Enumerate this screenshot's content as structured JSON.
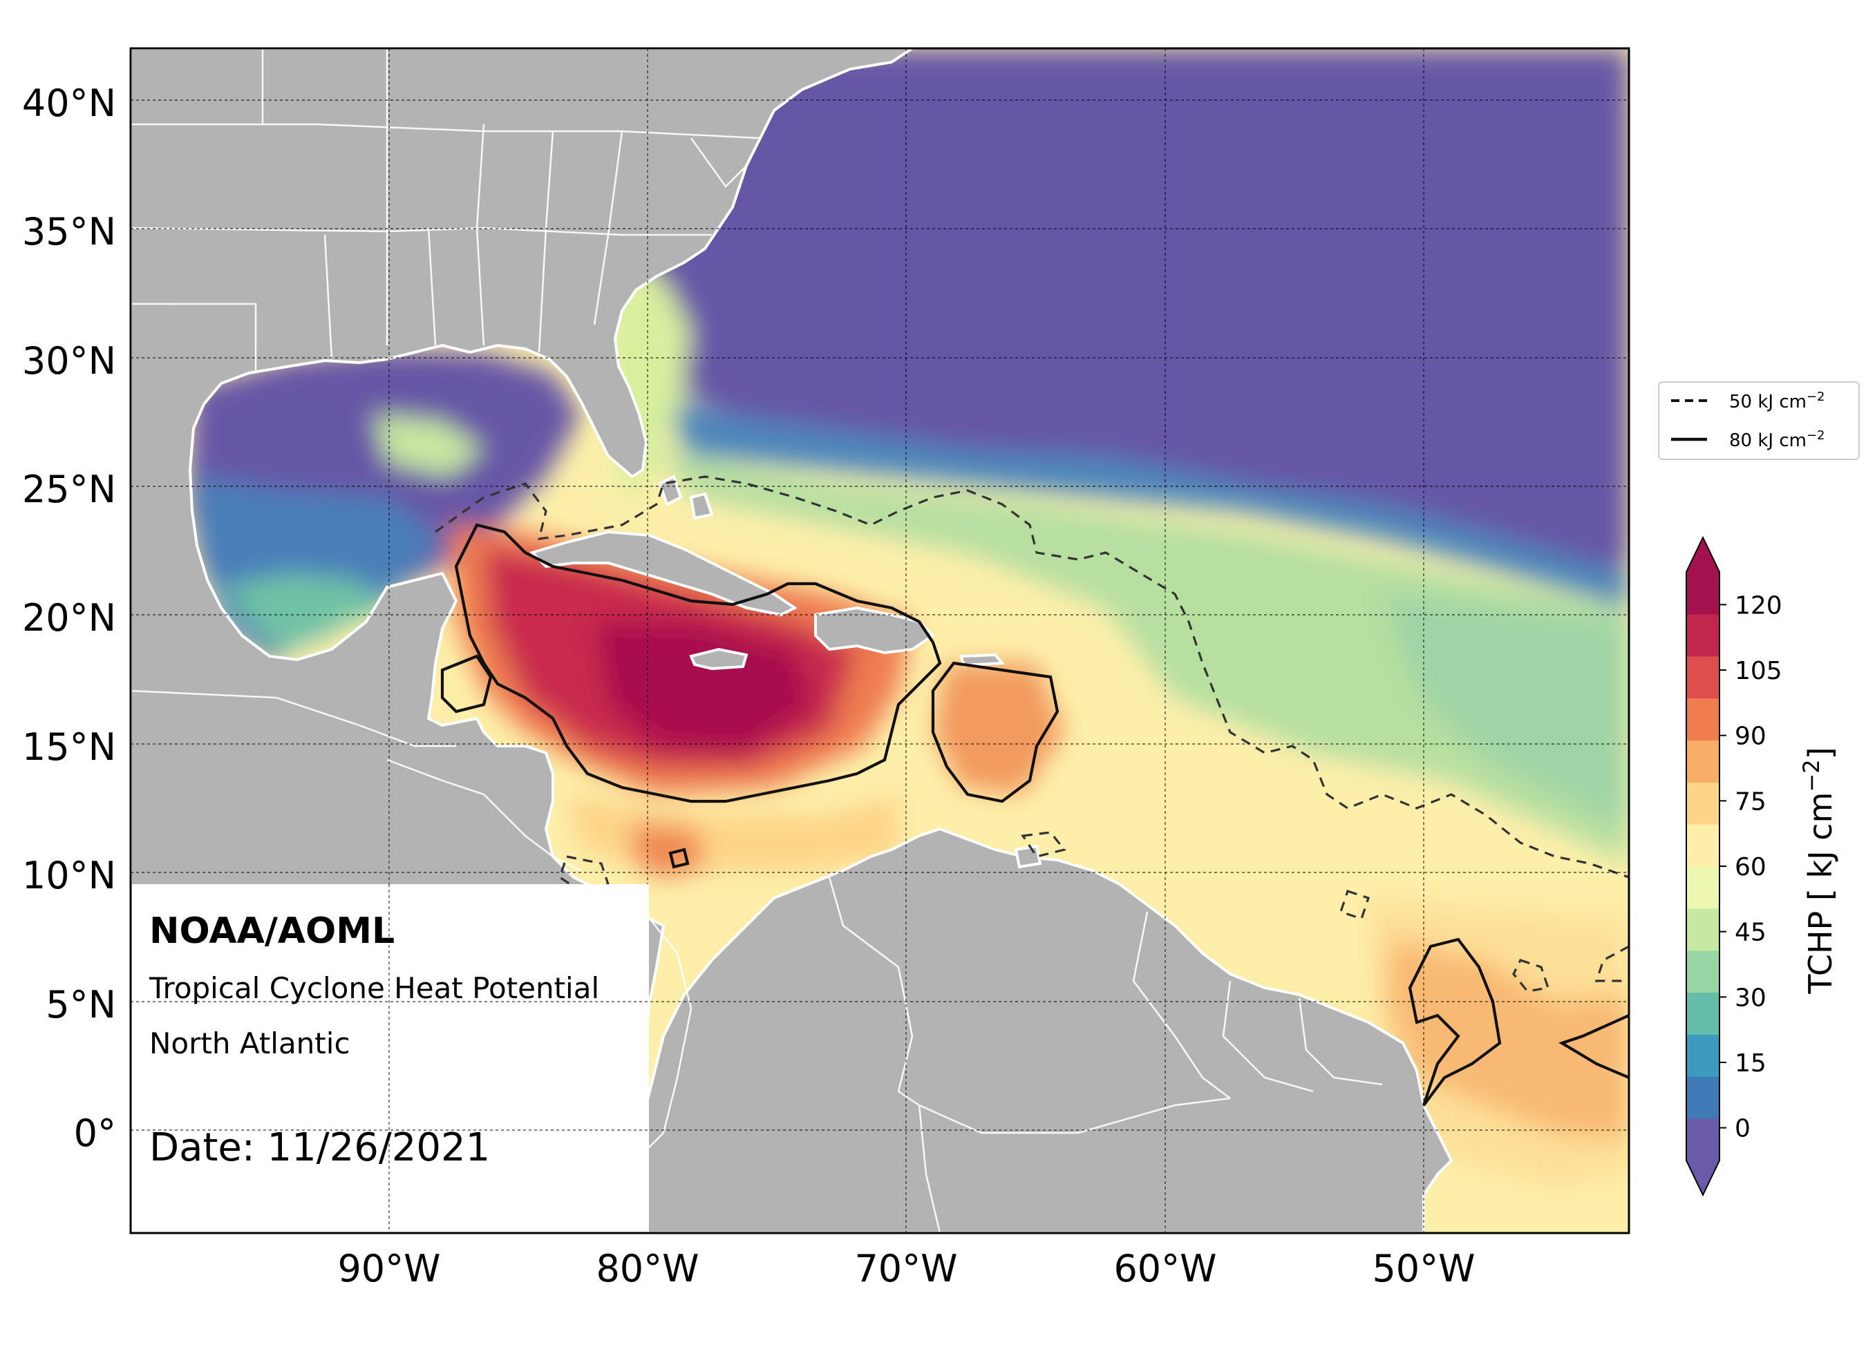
{
  "map": {
    "lat_labels": [
      "40°N",
      "35°N",
      "30°N",
      "25°N",
      "20°N",
      "15°N",
      "10°N",
      "5°N",
      "0°"
    ],
    "lon_labels": [
      "90°W",
      "80°W",
      "70°W",
      "60°W",
      "50°W"
    ],
    "lat_values": [
      40,
      35,
      30,
      25,
      20,
      15,
      10,
      5,
      0
    ],
    "lon_values": [
      -90,
      -80,
      -70,
      -60,
      -50
    ],
    "extent": {
      "lon_min": -100,
      "lon_max": -42,
      "lat_min": -4,
      "lat_max": 42
    },
    "gridlines": true
  },
  "annotation": {
    "org": "NOAA/AOML",
    "product": "Tropical Cyclone Heat Potential",
    "region": "North Atlantic",
    "date": "Date: 11/26/2021"
  },
  "legend": {
    "dashed_label": "50 kJ cm",
    "solid_label": "80 kJ cm",
    "exponent": "−2"
  },
  "colorbar": {
    "label_prefix": "TCHP [ kJ cm",
    "label_exp": "−2",
    "label_suffix": "]",
    "ticks": [
      "120",
      "105",
      "90",
      "75",
      "60",
      "45",
      "30",
      "15",
      "0"
    ],
    "tick_values": [
      120,
      105,
      90,
      75,
      60,
      45,
      30,
      15,
      0
    ],
    "colors": [
      "#6a5aa8",
      "#3f7ab7",
      "#3c9bbf",
      "#63bda8",
      "#98d4a4",
      "#c6e8a2",
      "#eef7b0",
      "#fdefaa",
      "#fdd488",
      "#f9ae67",
      "#ef7d4f",
      "#dd4e4c",
      "#c0274e",
      "#a2124f"
    ]
  },
  "land_color": "#b3b3b3",
  "ocean_cold_color": "#6657a6"
}
